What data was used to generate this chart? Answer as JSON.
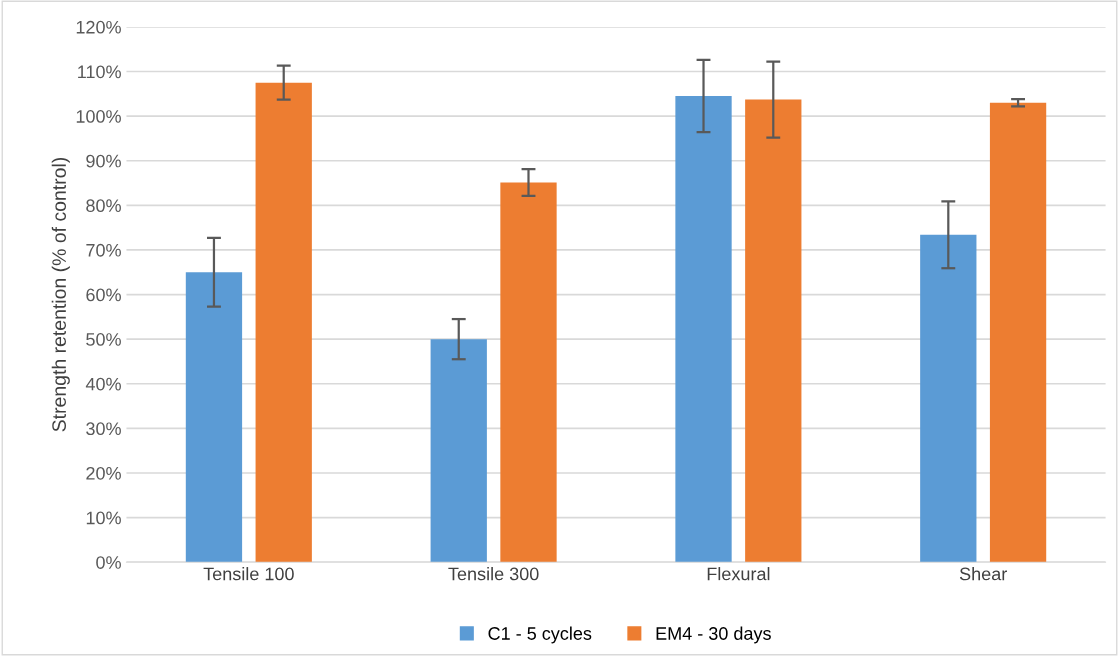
{
  "chart_data": {
    "type": "bar",
    "ylabel": "Strength retention (% of control)",
    "categories": [
      "Tensile 100",
      "Tensile 300",
      "Flexural",
      "Shear"
    ],
    "series": [
      {
        "name": "C1 - 5 cycles",
        "color": "#5b9bd5",
        "values": [
          65.0,
          50.0,
          104.5,
          73.4
        ],
        "errors": [
          7.7,
          4.5,
          8.1,
          7.5
        ]
      },
      {
        "name": "EM4 - 30 days",
        "color": "#ed7d31",
        "values": [
          107.5,
          85.1,
          103.7,
          103.0
        ],
        "errors": [
          3.8,
          3.0,
          8.5,
          0.8
        ]
      }
    ],
    "ylim": [
      0,
      120
    ],
    "yticks": [
      {
        "value": 0,
        "label": "0%"
      },
      {
        "value": 10,
        "label": "10%"
      },
      {
        "value": 20,
        "label": "20%"
      },
      {
        "value": 30,
        "label": "30%"
      },
      {
        "value": 40,
        "label": "40%"
      },
      {
        "value": 50,
        "label": "50%"
      },
      {
        "value": 60,
        "label": "60%"
      },
      {
        "value": 70,
        "label": "70%"
      },
      {
        "value": 80,
        "label": "80%"
      },
      {
        "value": 90,
        "label": "90%"
      },
      {
        "value": 100,
        "label": "100%"
      },
      {
        "value": 110,
        "label": "110%"
      },
      {
        "value": 120,
        "label": "120%"
      }
    ],
    "grid": "y",
    "legend": "bottom"
  }
}
